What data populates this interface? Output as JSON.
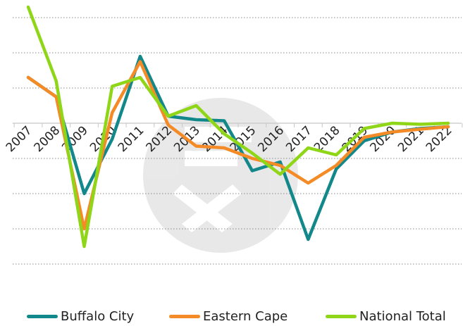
{
  "chart_data": {
    "type": "line",
    "title": "",
    "xlabel": "",
    "ylabel": "",
    "x": [
      "2007",
      "2008",
      "2009",
      "2010",
      "2011",
      "2012",
      "2013",
      "2014",
      "2015",
      "2016",
      "2017",
      "2018",
      "2019",
      "2020",
      "2021",
      "2022"
    ],
    "ylim": [
      -4,
      3
    ],
    "grid": true,
    "legend_position": "bottom",
    "series": [
      {
        "name": "Buffalo City",
        "color": "#12888a",
        "values": [
          1.3,
          0.75,
          -2.0,
          -0.45,
          1.9,
          0.2,
          0.1,
          0.07,
          -1.35,
          -1.1,
          -3.3,
          -1.3,
          -0.5,
          -0.25,
          -0.15,
          -0.1
        ]
      },
      {
        "name": "Eastern Cape",
        "color": "#f58b27",
        "values": [
          1.3,
          0.75,
          -3.0,
          0.3,
          1.75,
          -0.05,
          -0.65,
          -0.7,
          -1.0,
          -1.2,
          -1.7,
          -1.2,
          -0.4,
          -0.25,
          -0.17,
          -0.1
        ]
      },
      {
        "name": "National Total",
        "color": "#8fd619",
        "values": [
          3.3,
          1.2,
          -3.5,
          1.05,
          1.3,
          0.2,
          0.5,
          -0.3,
          -0.85,
          -1.45,
          -0.7,
          -0.9,
          -0.15,
          0.0,
          -0.03,
          0.0
        ]
      }
    ]
  },
  "legend": {
    "items": [
      {
        "label": "Buffalo City",
        "color": "#12888a"
      },
      {
        "label": "Eastern Cape",
        "color": "#f58b27"
      },
      {
        "label": "National Total",
        "color": "#8fd619"
      }
    ]
  }
}
